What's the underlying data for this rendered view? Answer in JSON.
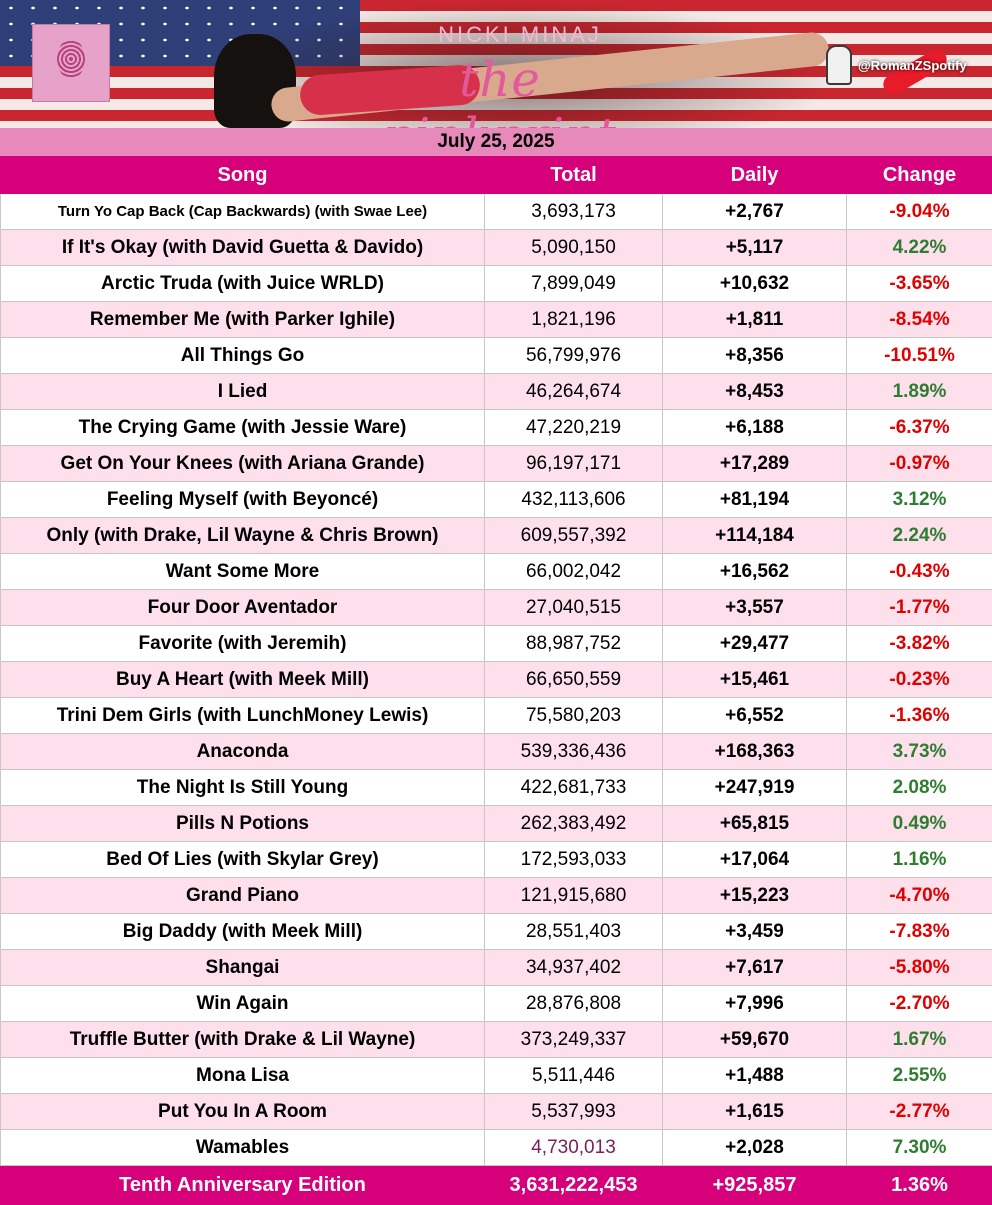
{
  "header": {
    "artist": "NICKI MINAJ",
    "album": "the pinkprint",
    "handle": "@RomanZSpotify",
    "date": "July 25, 2025",
    "cover_icon": "fingerprint-icon"
  },
  "columns": [
    "Song",
    "Total",
    "Daily",
    "Change"
  ],
  "rows": [
    {
      "song": "Turn Yo Cap Back (Cap Backwards) (with Swae Lee)",
      "total": "3,693,173",
      "daily": "+2,767",
      "change": "-9.04%",
      "dir": "neg",
      "small": true
    },
    {
      "song": "If It's Okay (with David Guetta & Davido)",
      "total": "5,090,150",
      "daily": "+5,117",
      "change": "4.22%",
      "dir": "pos"
    },
    {
      "song": "Arctic Truda (with Juice WRLD)",
      "total": "7,899,049",
      "daily": "+10,632",
      "change": "-3.65%",
      "dir": "neg"
    },
    {
      "song": "Remember Me (with Parker Ighile)",
      "total": "1,821,196",
      "daily": "+1,811",
      "change": "-8.54%",
      "dir": "neg"
    },
    {
      "song": "All Things Go",
      "total": "56,799,976",
      "daily": "+8,356",
      "change": "-10.51%",
      "dir": "neg"
    },
    {
      "song": "I Lied",
      "total": "46,264,674",
      "daily": "+8,453",
      "change": "1.89%",
      "dir": "pos"
    },
    {
      "song": "The Crying Game (with Jessie Ware)",
      "total": "47,220,219",
      "daily": "+6,188",
      "change": "-6.37%",
      "dir": "neg"
    },
    {
      "song": "Get On Your Knees (with Ariana Grande)",
      "total": "96,197,171",
      "daily": "+17,289",
      "change": "-0.97%",
      "dir": "neg"
    },
    {
      "song": "Feeling Myself (with Beyoncé)",
      "total": "432,113,606",
      "daily": "+81,194",
      "change": "3.12%",
      "dir": "pos"
    },
    {
      "song": "Only (with Drake, Lil Wayne & Chris Brown)",
      "total": "609,557,392",
      "daily": "+114,184",
      "change": "2.24%",
      "dir": "pos"
    },
    {
      "song": "Want Some More",
      "total": "66,002,042",
      "daily": "+16,562",
      "change": "-0.43%",
      "dir": "neg"
    },
    {
      "song": "Four Door Aventador",
      "total": "27,040,515",
      "daily": "+3,557",
      "change": "-1.77%",
      "dir": "neg"
    },
    {
      "song": "Favorite (with Jeremih)",
      "total": "88,987,752",
      "daily": "+29,477",
      "change": "-3.82%",
      "dir": "neg"
    },
    {
      "song": "Buy A Heart (with Meek Mill)",
      "total": "66,650,559",
      "daily": "+15,461",
      "change": "-0.23%",
      "dir": "neg"
    },
    {
      "song": "Trini Dem Girls (with LunchMoney Lewis)",
      "total": "75,580,203",
      "daily": "+6,552",
      "change": "-1.36%",
      "dir": "neg"
    },
    {
      "song": "Anaconda",
      "total": "539,336,436",
      "daily": "+168,363",
      "change": "3.73%",
      "dir": "pos"
    },
    {
      "song": "The Night Is Still Young",
      "total": "422,681,733",
      "daily": "+247,919",
      "change": "2.08%",
      "dir": "pos"
    },
    {
      "song": "Pills N Potions",
      "total": "262,383,492",
      "daily": "+65,815",
      "change": "0.49%",
      "dir": "pos"
    },
    {
      "song": "Bed Of Lies (with Skylar Grey)",
      "total": "172,593,033",
      "daily": "+17,064",
      "change": "1.16%",
      "dir": "pos"
    },
    {
      "song": "Grand Piano",
      "total": "121,915,680",
      "daily": "+15,223",
      "change": "-4.70%",
      "dir": "neg"
    },
    {
      "song": "Big Daddy (with Meek Mill)",
      "total": "28,551,403",
      "daily": "+3,459",
      "change": "-7.83%",
      "dir": "neg"
    },
    {
      "song": "Shangai",
      "total": "34,937,402",
      "daily": "+7,617",
      "change": "-5.80%",
      "dir": "neg"
    },
    {
      "song": "Win Again",
      "total": "28,876,808",
      "daily": "+7,996",
      "change": "-2.70%",
      "dir": "neg"
    },
    {
      "song": "Truffle Butter (with Drake & Lil Wayne)",
      "total": "373,249,337",
      "daily": "+59,670",
      "change": "1.67%",
      "dir": "pos"
    },
    {
      "song": "Mona Lisa",
      "total": "5,511,446",
      "daily": "+1,488",
      "change": "2.55%",
      "dir": "pos"
    },
    {
      "song": "Put You In A Room",
      "total": "5,537,993",
      "daily": "+1,615",
      "change": "-2.77%",
      "dir": "neg"
    },
    {
      "song": "Wamables",
      "total": "4,730,013",
      "daily": "+2,028",
      "change": "7.30%",
      "dir": "pos",
      "total_color": "purple"
    }
  ],
  "footer": {
    "song": "Tenth Anniversary Edition",
    "total": "3,631,222,453",
    "daily": "+925,857",
    "change": "1.36%"
  },
  "colors": {
    "header_pink": "#d6007a",
    "date_bar": "#e889bb",
    "row_alt": "#fde0ec",
    "negative": "#e00000",
    "positive": "#2e7d32"
  }
}
